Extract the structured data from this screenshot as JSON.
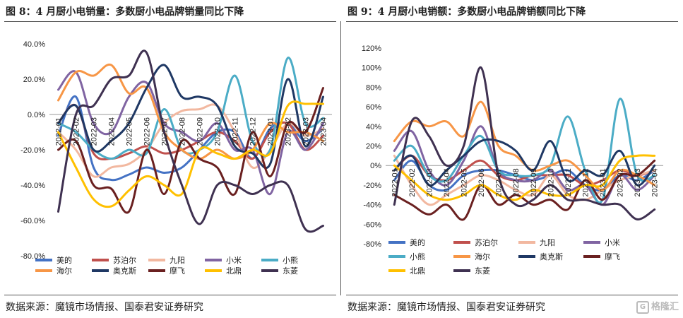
{
  "panels": {
    "left_title": "图 8：4 月厨小电销量：多数厨小电品牌销量同比下降",
    "right_title": "图 9：4 月厨小电销额：多数厨小电品牌销额同比下降",
    "left_source": "数据来源：魔镜市场情报、国泰君安证券研究",
    "right_source": "数据来源：魔镜市场情报、国泰君安证券研究"
  },
  "watermark": "格隆汇",
  "colors": {
    "美的": "#4472c4",
    "苏泊尔": "#c0504d",
    "九阳": "#f2b8a0",
    "小米": "#8064a2",
    "小熊": "#4bacc6",
    "海尔": "#f79646",
    "奥克斯": "#1f3864",
    "摩飞": "#6a2020",
    "北鼎": "#ffc000",
    "东菱": "#3f3151"
  },
  "chart_data": [
    {
      "type": "line",
      "title": "图 8：4 月厨小电销量：多数厨小电品牌销量同比下降",
      "categories": [
        "2022-01",
        "2022-02",
        "2022-03",
        "2022-04",
        "2022-05",
        "2022-06",
        "2022-07",
        "2022-08",
        "2022-09",
        "2022-10",
        "2022-11",
        "2022-12",
        "2023-01",
        "2023-02",
        "2023-03",
        "2023-04"
      ],
      "ylim": [
        -80,
        40
      ],
      "yticks": [
        -80,
        -60,
        -40,
        -20,
        0,
        20,
        40
      ],
      "ytick_labels": [
        "-80.0%",
        "-60.0%",
        "-40.0%",
        "-20.0%",
        "0.0%",
        "20.0%",
        "40.0%"
      ],
      "legend_position": "bottom",
      "series": [
        {
          "name": "美的",
          "values": [
            -12,
            10,
            -30,
            -37,
            -34,
            -30,
            -33,
            -30,
            -20,
            -10,
            -10,
            -25,
            -8,
            -5,
            -15,
            -8
          ]
        },
        {
          "name": "苏泊尔",
          "values": [
            -5,
            5,
            -22,
            -25,
            -22,
            -18,
            -22,
            -20,
            -15,
            -10,
            -15,
            -25,
            -10,
            -5,
            -20,
            -12
          ]
        },
        {
          "name": "九阳",
          "values": [
            -10,
            -20,
            -35,
            -30,
            -28,
            -20,
            -5,
            2,
            3,
            5,
            -10,
            -30,
            -20,
            -5,
            -12,
            -8
          ]
        },
        {
          "name": "小米",
          "values": [
            14,
            24,
            -5,
            -10,
            10,
            18,
            -5,
            -10,
            -15,
            -5,
            -20,
            -20,
            -45,
            -10,
            -20,
            -5
          ]
        },
        {
          "name": "小熊",
          "values": [
            -5,
            -10,
            -20,
            -25,
            -20,
            -22,
            3,
            -20,
            -20,
            -10,
            22,
            -15,
            -20,
            32,
            -5,
            -2
          ]
        },
        {
          "name": "海尔",
          "values": [
            8,
            24,
            22,
            28,
            12,
            15,
            -10,
            -20,
            -25,
            -20,
            -25,
            -20,
            -5,
            -10,
            -10,
            -15
          ]
        },
        {
          "name": "奥克斯",
          "values": [
            -5,
            5,
            -20,
            -15,
            -5,
            15,
            28,
            10,
            10,
            5,
            -18,
            -22,
            -28,
            20,
            -18,
            10
          ]
        },
        {
          "name": "摩飞",
          "values": [
            -20,
            -15,
            -40,
            -42,
            -55,
            -20,
            -45,
            -15,
            -25,
            -30,
            -45,
            -10,
            -35,
            -5,
            -10,
            15
          ]
        },
        {
          "name": "北鼎",
          "values": [
            -10,
            -30,
            -48,
            -52,
            -43,
            -35,
            -40,
            -45,
            -20,
            -22,
            -25,
            -20,
            -22,
            5,
            6,
            6
          ]
        },
        {
          "name": "东菱",
          "values": [
            -55,
            0,
            5,
            20,
            22,
            35,
            -10,
            -40,
            -62,
            -40,
            -40,
            -45,
            -40,
            -40,
            -65,
            -63
          ]
        }
      ]
    },
    {
      "type": "line",
      "title": "图 9：4 月厨小电销额：多数厨小电品牌销额同比下降",
      "categories": [
        "2022-01",
        "2022-02",
        "2022-03",
        "2022-04",
        "2022-05",
        "2022-06",
        "2022-07",
        "2022-08",
        "2022-09",
        "2022-10",
        "2022-11",
        "2022-12",
        "2023-01",
        "2023-02",
        "2023-03",
        "2023-04"
      ],
      "ylim": [
        -80,
        120
      ],
      "yticks": [
        -80,
        -60,
        -40,
        -20,
        0,
        20,
        40,
        60,
        80,
        100,
        120
      ],
      "ytick_labels": [
        "-80%",
        "-60%",
        "-40%",
        "-20%",
        "0%",
        "20%",
        "40%",
        "60%",
        "80%",
        "100%",
        "120%"
      ],
      "legend_position": "bottom",
      "series": [
        {
          "name": "美的",
          "values": [
            -15,
            5,
            -20,
            -25,
            -10,
            -5,
            -5,
            -10,
            -15,
            -10,
            -5,
            -20,
            -25,
            -10,
            -15,
            -5
          ]
        },
        {
          "name": "苏泊尔",
          "values": [
            -5,
            10,
            -10,
            -15,
            -5,
            5,
            -10,
            -15,
            -10,
            -10,
            -10,
            -20,
            -15,
            -5,
            -10,
            -5
          ]
        },
        {
          "name": "九阳",
          "values": [
            10,
            -20,
            -40,
            -30,
            -20,
            -10,
            -15,
            -25,
            -30,
            -10,
            -30,
            -35,
            -25,
            -15,
            -10,
            -5
          ]
        },
        {
          "name": "小米",
          "values": [
            15,
            35,
            -5,
            -20,
            5,
            40,
            -5,
            -15,
            -15,
            -5,
            -25,
            -20,
            -40,
            -10,
            -25,
            -10
          ]
        },
        {
          "name": "小熊",
          "values": [
            5,
            20,
            -10,
            -15,
            10,
            30,
            -5,
            -10,
            -10,
            0,
            50,
            -5,
            -35,
            68,
            -10,
            -10
          ]
        },
        {
          "name": "海尔",
          "values": [
            25,
            45,
            40,
            45,
            30,
            65,
            20,
            10,
            -5,
            0,
            5,
            -10,
            -25,
            -5,
            -10,
            -20
          ]
        },
        {
          "name": "奥克斯",
          "values": [
            -5,
            10,
            -20,
            -5,
            10,
            25,
            25,
            15,
            -5,
            25,
            -15,
            -5,
            -10,
            15,
            -20,
            0
          ]
        },
        {
          "name": "摩飞",
          "values": [
            -30,
            -40,
            -50,
            -40,
            -55,
            -20,
            -40,
            -30,
            -40,
            -35,
            -45,
            -15,
            -35,
            -10,
            -10,
            5
          ]
        },
        {
          "name": "北鼎",
          "values": [
            0,
            -15,
            -30,
            -35,
            -30,
            -20,
            -30,
            -35,
            -25,
            -30,
            -30,
            -20,
            -20,
            5,
            10,
            10
          ]
        },
        {
          "name": "东菱",
          "values": [
            -40,
            45,
            30,
            0,
            20,
            100,
            -10,
            -40,
            -35,
            -20,
            -35,
            -35,
            -40,
            -40,
            -55,
            -45
          ]
        }
      ]
    }
  ]
}
